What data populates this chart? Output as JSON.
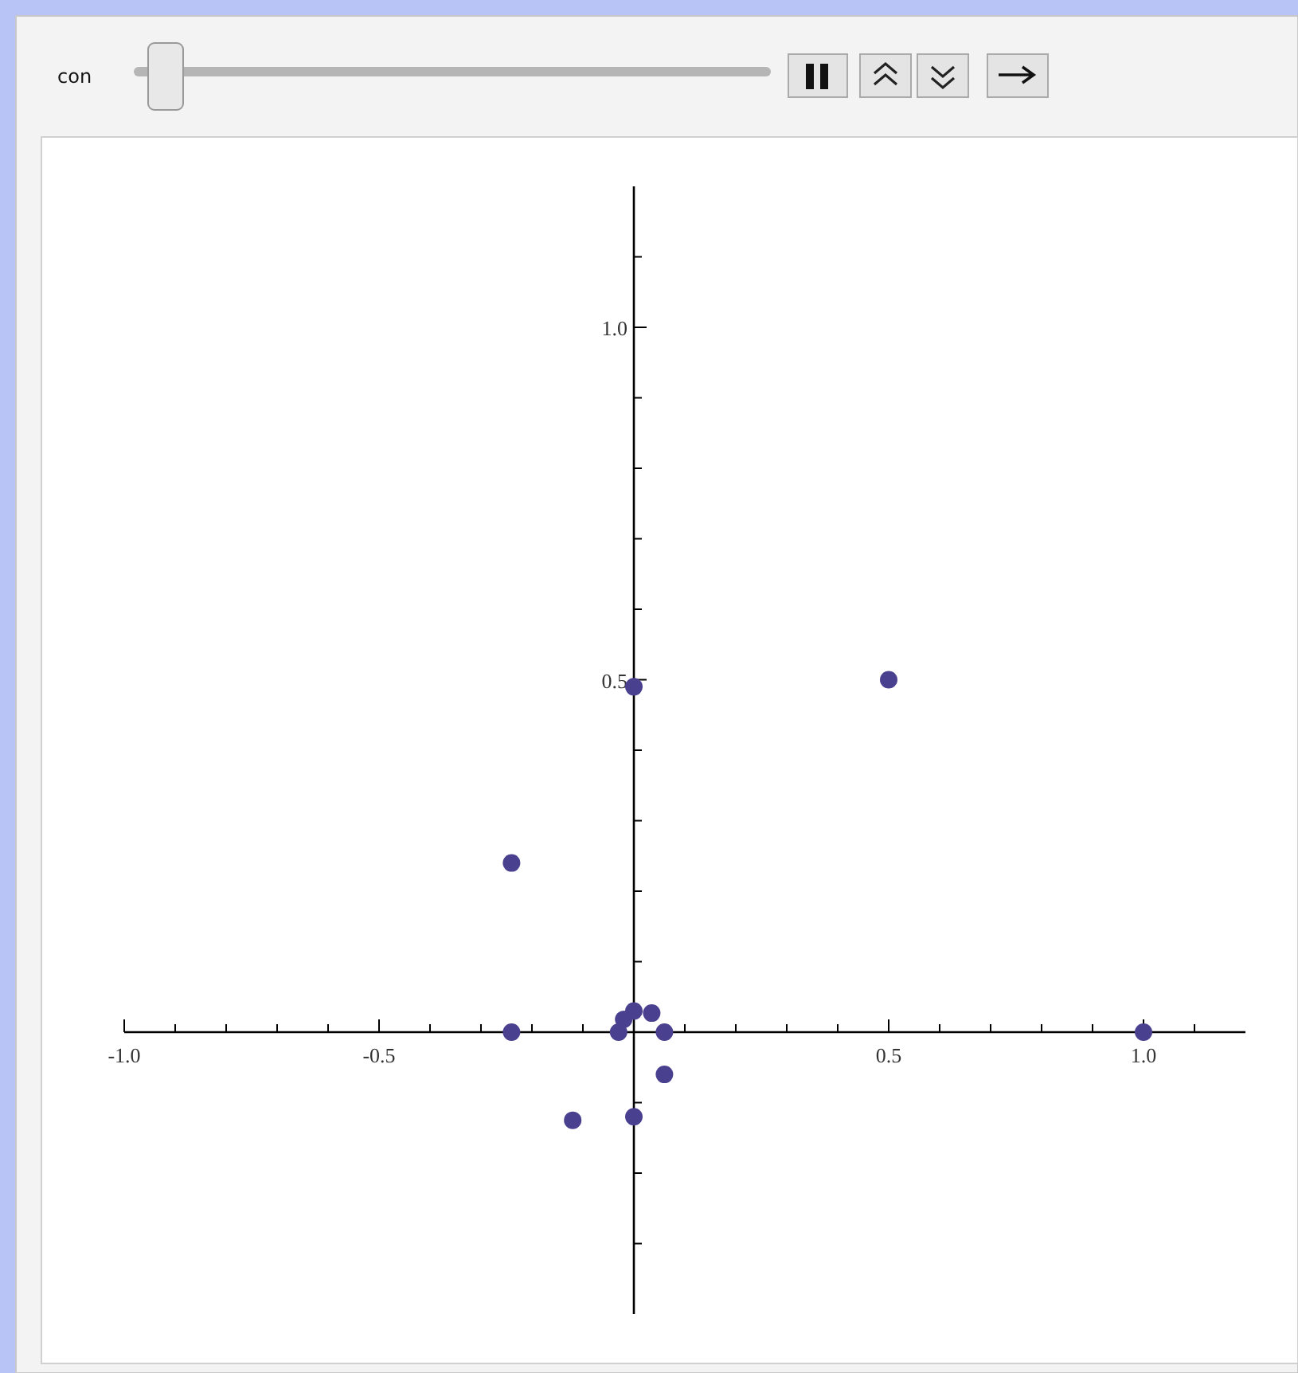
{
  "chart_data": {
    "type": "scatter",
    "annotations": [
      "con"
    ],
    "x": [
      0.5,
      0,
      -0.24,
      -0.24,
      1,
      0,
      0.035,
      -0.02,
      -0.03,
      0.06,
      0.06,
      0,
      -0.12
    ],
    "values": [
      0.5,
      0.49,
      0.24,
      0,
      0,
      0.03,
      0.027,
      0.018,
      0,
      0,
      -0.06,
      -0.12,
      -0.125
    ],
    "color": "#4a4090",
    "marker": "circle",
    "grid": false,
    "xlim": [
      -1,
      1.2
    ],
    "ylim": [
      -0.4,
      1.2
    ],
    "xticks": [
      {
        "value": -1,
        "label": "-1.0"
      },
      {
        "value": -0.9,
        "label": null
      },
      {
        "value": -0.8,
        "label": null
      },
      {
        "value": -0.7,
        "label": null
      },
      {
        "value": -0.6,
        "label": null
      },
      {
        "value": -0.5,
        "label": "-0.5"
      },
      {
        "value": -0.4,
        "label": null
      },
      {
        "value": -0.3,
        "label": null
      },
      {
        "value": -0.2,
        "label": null
      },
      {
        "value": -0.1,
        "label": null
      },
      {
        "value": 0.1,
        "label": null
      },
      {
        "value": 0.2,
        "label": null
      },
      {
        "value": 0.3,
        "label": null
      },
      {
        "value": 0.4,
        "label": null
      },
      {
        "value": 0.5,
        "label": "0.5"
      },
      {
        "value": 0.6,
        "label": null
      },
      {
        "value": 0.7,
        "label": null
      },
      {
        "value": 0.8,
        "label": null
      },
      {
        "value": 0.9,
        "label": null
      },
      {
        "value": 1,
        "label": "1.0"
      },
      {
        "value": 1.1,
        "label": null
      }
    ],
    "yticks": [
      {
        "value": -0.3,
        "label": null
      },
      {
        "value": -0.2,
        "label": null
      },
      {
        "value": -0.1,
        "label": null
      },
      {
        "value": 0.1,
        "label": null
      },
      {
        "value": 0.2,
        "label": null
      },
      {
        "value": 0.3,
        "label": null
      },
      {
        "value": 0.4,
        "label": null
      },
      {
        "value": 0.5,
        "label": "0.5"
      },
      {
        "value": 0.6,
        "label": null
      },
      {
        "value": 0.7,
        "label": null
      },
      {
        "value": 0.8,
        "label": null
      },
      {
        "value": 0.9,
        "label": null
      },
      {
        "value": 1,
        "label": "1.0"
      },
      {
        "value": 1.1,
        "label": null
      }
    ]
  }
}
